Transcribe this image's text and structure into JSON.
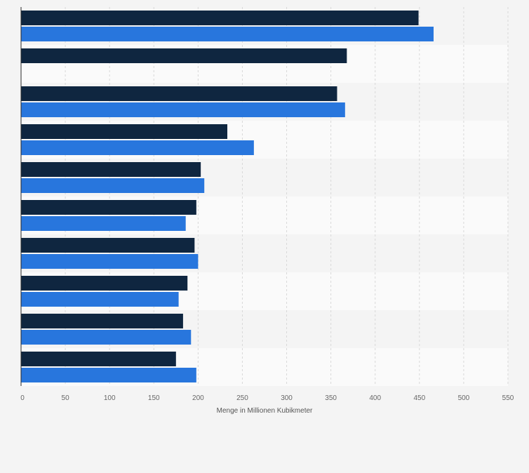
{
  "chart_data": {
    "type": "bar",
    "orientation": "horizontal",
    "categories": [
      "",
      "",
      "",
      "",
      "",
      "",
      "",
      "",
      "",
      ""
    ],
    "series": [
      {
        "values": [
          449,
          368,
          357,
          233,
          203,
          198,
          196,
          188,
          183,
          175
        ]
      },
      {
        "values": [
          466,
          null,
          366,
          263,
          207,
          186,
          200,
          178,
          192,
          198
        ]
      }
    ],
    "xlabel": "Menge in Millionen Kubikmeter",
    "ylabel": "",
    "xlim": [
      0,
      550
    ],
    "ticks": [
      0,
      50,
      100,
      150,
      200,
      250,
      300,
      350,
      400,
      450,
      500,
      550
    ],
    "grid": true,
    "legend": "none",
    "colors": {
      "series": [
        "#0f2640",
        "#2876dd"
      ],
      "band_odd": "#f4f4f4",
      "band_even": "#fafafa",
      "gridline": "#d8d8d8",
      "axis": "#2a2a2a",
      "tick_text": "#666666",
      "label_text": "#555555"
    }
  }
}
